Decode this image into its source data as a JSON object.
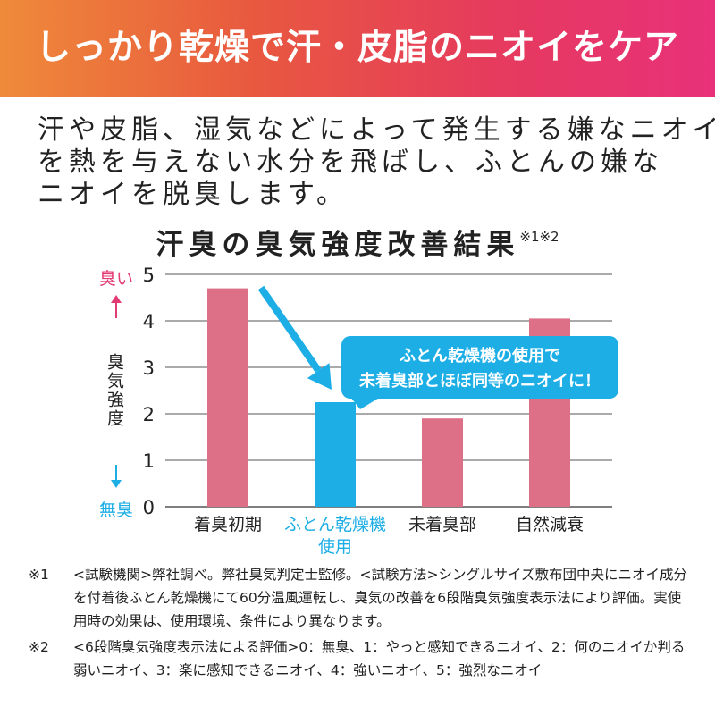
{
  "banner": {
    "title": "しっかり乾燥で汗・皮脂のニオイをケア"
  },
  "intro": {
    "lines": [
      "汗や皮脂、湿気などによって発生する嫌なニオイ",
      "を熱を与えない水分を飛ばし、ふとんの嫌な",
      "ニオイを脱臭します。"
    ]
  },
  "chart_data": {
    "type": "bar",
    "title": "汗臭の臭気強度改善結果",
    "title_note": "※1※2",
    "ylabel": "臭気強度",
    "ylim": [
      0,
      5
    ],
    "yticks": [
      0,
      1,
      2,
      3,
      4,
      5
    ],
    "grid": true,
    "categories": [
      "着臭初期",
      "ふとん乾燥機\n使用",
      "未着臭部",
      "自然減衰"
    ],
    "values": [
      4.7,
      2.25,
      1.9,
      4.05
    ],
    "bar_colors": [
      "#dd6f86",
      "#1eaee6",
      "#dd6f86",
      "#dd6f86"
    ],
    "highlight_index": 1,
    "scale_labels": {
      "top": "臭い",
      "bottom": "無臭"
    },
    "callout": {
      "lines": [
        "ふとん乾燥機の使用で",
        "未着臭部とほぼ同等のニオイに！"
      ],
      "target_index": 1
    }
  },
  "colors": {
    "accent_blue": "#1eaee6",
    "bar_pink": "#dd6f86",
    "scale_top": "#e23a72",
    "grid": "#555555"
  },
  "footnotes": [
    {
      "mark": "※1",
      "text": "<試験機関>弊社調べ。弊社臭気判定士監修。<試験方法>シングルサイズ敷布団中央にニオイ成分を付着後ふとん乾燥機にて60分温風運転し、臭気の改善を6段階臭気強度表示法により評価。実使用時の効果は、使用環境、条件により異なります。"
    },
    {
      "mark": "※2",
      "text": "<6段階臭気強度表示法による評価>0：無臭、1：やっと感知できるニオイ、2：何のニオイか判る弱いニオイ、3：楽に感知できるニオイ、4：強いニオイ、5：強烈なニオイ"
    }
  ]
}
